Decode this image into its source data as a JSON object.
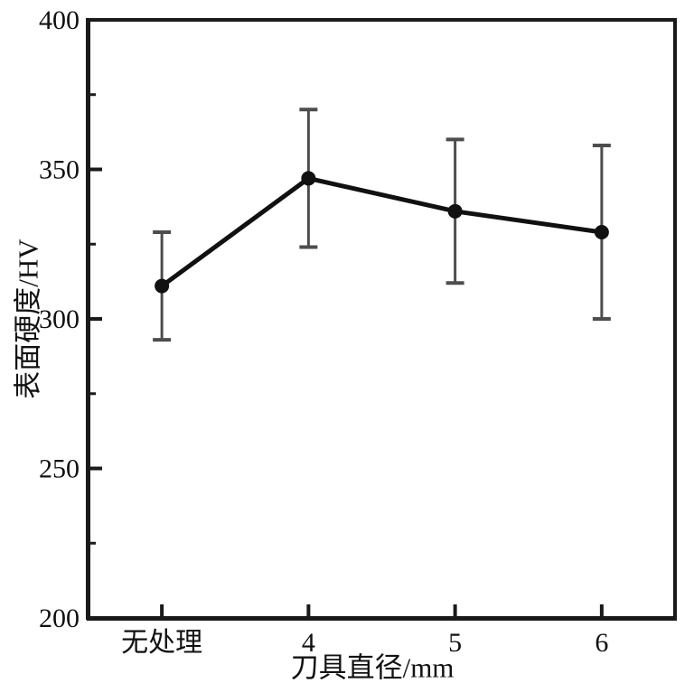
{
  "chart_data": {
    "type": "line",
    "categories": [
      "无处理",
      "4",
      "5",
      "6"
    ],
    "series": [
      {
        "name": "表面硬度",
        "values": [
          311,
          347,
          336,
          329
        ],
        "error_plus": [
          18,
          23,
          24,
          29
        ],
        "error_minus": [
          18,
          23,
          24,
          29
        ]
      }
    ],
    "title": "",
    "xlabel": "刀具直径/mm",
    "ylabel": "表面硬度/HV",
    "ylim": [
      200,
      400
    ],
    "y_major_ticks": [
      200,
      250,
      300,
      350,
      400
    ],
    "y_minor_ticks": [
      225,
      275,
      325,
      375
    ],
    "grid": false,
    "legend": false,
    "marker": "filled-circle",
    "colors": {
      "line": "#111111",
      "marker": "#111111",
      "error_bar": "#4d4d4d",
      "axis": "#1a1a1a",
      "background": "#ffffff"
    }
  }
}
